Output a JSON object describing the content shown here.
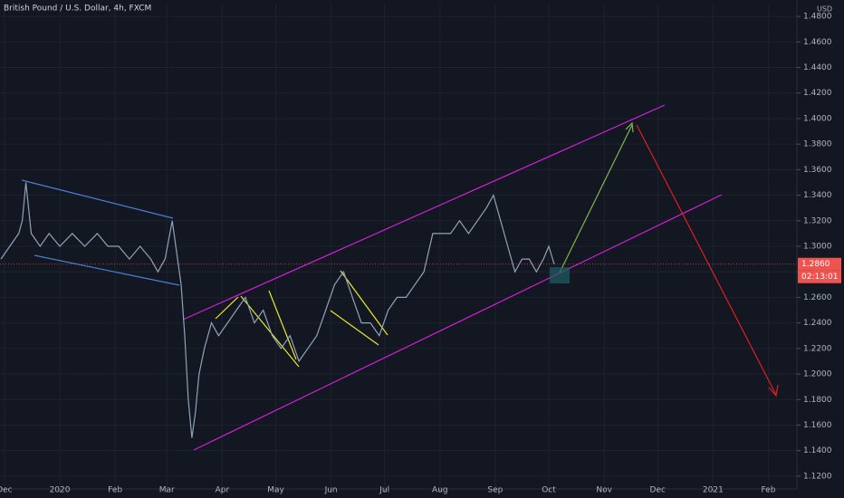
{
  "chart_data": {
    "type": "line",
    "title": "British Pound / U.S. Dollar, 4h, FXCM",
    "y_unit": "USD",
    "x": [
      -2,
      3,
      8,
      10,
      12,
      15,
      20,
      25,
      31,
      38,
      45,
      52,
      58,
      64,
      70,
      76,
      82,
      86,
      90,
      94,
      97,
      99,
      101,
      103,
      105,
      107,
      109,
      112,
      116,
      120,
      125,
      130,
      135,
      140,
      145,
      150,
      155,
      160,
      165,
      170,
      175,
      180,
      185,
      190,
      195,
      200,
      205,
      210,
      215,
      220,
      225,
      230,
      235,
      240,
      245,
      250,
      255,
      260,
      265,
      270,
      274,
      278,
      282,
      286,
      290,
      294,
      298,
      302,
      305,
      308
    ],
    "values": [
      1.29,
      1.3,
      1.31,
      1.32,
      1.35,
      1.31,
      1.3,
      1.31,
      1.3,
      1.31,
      1.3,
      1.31,
      1.3,
      1.3,
      1.29,
      1.3,
      1.29,
      1.28,
      1.29,
      1.32,
      1.29,
      1.27,
      1.23,
      1.18,
      1.15,
      1.17,
      1.2,
      1.22,
      1.24,
      1.23,
      1.24,
      1.25,
      1.26,
      1.24,
      1.25,
      1.23,
      1.22,
      1.23,
      1.21,
      1.22,
      1.23,
      1.25,
      1.27,
      1.28,
      1.26,
      1.24,
      1.24,
      1.23,
      1.25,
      1.26,
      1.26,
      1.27,
      1.28,
      1.31,
      1.31,
      1.31,
      1.32,
      1.31,
      1.32,
      1.33,
      1.34,
      1.32,
      1.3,
      1.28,
      1.29,
      1.29,
      1.28,
      1.29,
      1.3,
      1.286
    ],
    "color": "#8fa3b8",
    "xlim": [
      -2.5,
      444
    ],
    "xticks": [
      {
        "value": 0,
        "label": "Dec"
      },
      {
        "value": 31,
        "label": "2020"
      },
      {
        "value": 62,
        "label": "Feb"
      },
      {
        "value": 91,
        "label": "Mar"
      },
      {
        "value": 122,
        "label": "Apr"
      },
      {
        "value": 152,
        "label": "May"
      },
      {
        "value": 183,
        "label": "Jun"
      },
      {
        "value": 213,
        "label": "Jul"
      },
      {
        "value": 244,
        "label": "Aug"
      },
      {
        "value": 275,
        "label": "Sep"
      },
      {
        "value": 305,
        "label": "Oct"
      },
      {
        "value": 336,
        "label": "Nov"
      },
      {
        "value": 366,
        "label": "Dec"
      },
      {
        "value": 397,
        "label": "2021"
      },
      {
        "value": 428,
        "label": "Feb"
      }
    ],
    "ylim": [
      1.11,
      1.49
    ],
    "yticks": [
      {
        "value": 1.12,
        "label": "1.1200"
      },
      {
        "value": 1.14,
        "label": "1.1400"
      },
      {
        "value": 1.16,
        "label": "1.1600"
      },
      {
        "value": 1.18,
        "label": "1.1800"
      },
      {
        "value": 1.2,
        "label": "1.2000"
      },
      {
        "value": 1.22,
        "label": "1.2200"
      },
      {
        "value": 1.24,
        "label": "1.2400"
      },
      {
        "value": 1.26,
        "label": "1.2600"
      },
      {
        "value": 1.28,
        "label": "1.2800"
      },
      {
        "value": 1.3,
        "label": "1.3000"
      },
      {
        "value": 1.32,
        "label": "1.3200"
      },
      {
        "value": 1.34,
        "label": "1.3400"
      },
      {
        "value": 1.36,
        "label": "1.3600"
      },
      {
        "value": 1.38,
        "label": "1.3800"
      },
      {
        "value": 1.4,
        "label": "1.4000"
      },
      {
        "value": 1.42,
        "label": "1.4200"
      },
      {
        "value": 1.44,
        "label": "1.4400"
      },
      {
        "value": 1.46,
        "label": "1.4600"
      },
      {
        "value": 1.48,
        "label": "1.4800"
      }
    ],
    "grid": true,
    "last_price": {
      "value": 1.286,
      "label": "1.2860"
    },
    "countdown": "02:13:01"
  }
}
